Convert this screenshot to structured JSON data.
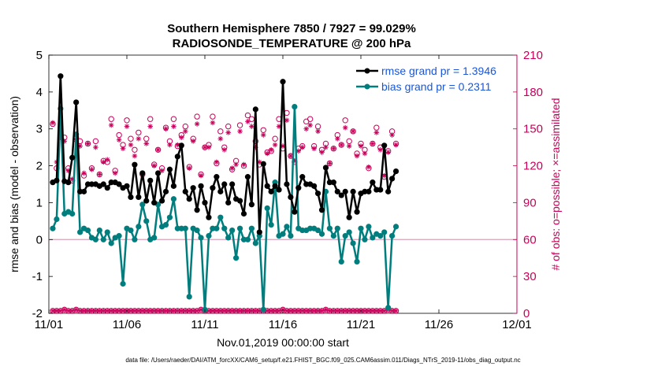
{
  "colors": {
    "rmse": "#000000",
    "bias": "#007d7d",
    "obs": "#c8005a",
    "legend_text": "#1a56d6",
    "zero_line": "#d9a0b8"
  },
  "chart_data": {
    "type": "line",
    "title_line1": "Southern Hemisphere 7850 / 7927 = 99.029%",
    "title_line2": "RADIOSONDE_TEMPERATURE @ 200 hPa",
    "xlabel": "Nov.01,2019 00:00:00 start",
    "ylabel_left": "rmse and bias (model - observation)",
    "ylabel_right": "# of obs: o=possible; ×=assimilated",
    "footer": "data file: /Users/raeder/DAI/ATM_forcXX/CAM6_setup/f.e21.FHIST_BGC.f09_025.CAM6assim.011/Diags_NTrS_2019-11/obs_diag_output.nc",
    "xlim": [
      0,
      30
    ],
    "ylim_left": [
      -2,
      5
    ],
    "ylim_right": [
      0,
      210
    ],
    "xticks": [
      0,
      5,
      10,
      15,
      20,
      25,
      30
    ],
    "xticklabels": [
      "11/01",
      "11/06",
      "11/11",
      "11/16",
      "11/21",
      "11/26",
      "12/01"
    ],
    "yticks_left": [
      -2,
      -1,
      0,
      1,
      2,
      3,
      4,
      5
    ],
    "yticks_right": [
      0,
      30,
      60,
      90,
      120,
      150,
      180,
      210
    ],
    "legend": [
      {
        "name": "rmse grand pr = 1.3946",
        "series": "rmse"
      },
      {
        "name": "bias grand pr = 0.2311",
        "series": "bias"
      }
    ],
    "series": [
      {
        "name": "rmse",
        "x_start": 0.25,
        "x_step": 0.25,
        "values": [
          1.55,
          1.6,
          4.43,
          1.58,
          1.55,
          2.22,
          3.72,
          1.3,
          1.3,
          1.5,
          1.5,
          1.5,
          1.45,
          1.5,
          1.4,
          1.55,
          1.55,
          1.5,
          1.4,
          1.45,
          1.15,
          2.03,
          1.15,
          1.8,
          1.05,
          1.6,
          1.0,
          1.8,
          1.05,
          1.3,
          1.9,
          1.45,
          2.25,
          2.55,
          1.3,
          1.1,
          1.4,
          0.8,
          1.45,
          1.0,
          0.6,
          1.4,
          1.7,
          1.3,
          1.5,
          1.0,
          1.5,
          1.1,
          1.05,
          0.7,
          1.7,
          0.95,
          3.53,
          0.2,
          2.05,
          1.45,
          1.3,
          1.45,
          1.35,
          4.28,
          1.5,
          1.15,
          0.75,
          1.4,
          1.7,
          1.5,
          1.5,
          1.45,
          1.25,
          0.8,
          1.95,
          1.55,
          1.55,
          1.3,
          1.2,
          1.3,
          0.6,
          1.3,
          0.75,
          1.25,
          1.3,
          1.3,
          1.55,
          1.35,
          1.35,
          2.55,
          1.3,
          1.65,
          1.85
        ]
      },
      {
        "name": "bias",
        "x_start": 0.25,
        "x_step": 0.25,
        "values": [
          0.3,
          0.55,
          3.55,
          0.7,
          0.75,
          0.7,
          2.85,
          0.2,
          0.3,
          0.25,
          0.05,
          0.0,
          0.25,
          0.0,
          0.2,
          -0.1,
          0.05,
          0.1,
          -1.2,
          0.3,
          0.25,
          0.0,
          0.35,
          0.95,
          0.5,
          0.0,
          0.05,
          0.95,
          0.35,
          0.4,
          0.6,
          1.1,
          0.3,
          0.3,
          0.3,
          -1.55,
          0.3,
          0.25,
          0.05,
          -1.9,
          0.1,
          0.3,
          0.3,
          0.6,
          0.3,
          0.05,
          0.25,
          -0.5,
          0.3,
          0.0,
          0.0,
          0.3,
          -0.1,
          0.1,
          -1.9,
          0.85,
          0.4,
          1.55,
          0.1,
          0.15,
          0.35,
          0.1,
          3.6,
          0.3,
          0.25,
          0.25,
          0.3,
          0.3,
          0.25,
          0.15,
          1.3,
          0.3,
          0.1,
          0.3,
          -0.6,
          0.1,
          0.2,
          -0.1,
          -0.6,
          0.3,
          0.0,
          0.35,
          0.05,
          0.15,
          0.1,
          0.2,
          -1.85,
          0.1,
          0.35
        ]
      },
      {
        "name": "obs possible",
        "x_start": 0.25,
        "x_step": 0.25,
        "values": [
          154,
          118,
          151,
          143,
          118,
          108,
          143,
          140,
          112,
          138,
          118,
          140,
          113,
          124,
          123,
          158,
          116,
          145,
          137,
          157,
          142,
          133,
          147,
          113,
          142,
          158,
          121,
          133,
          118,
          151,
          140,
          158,
          136,
          145,
          152,
          119,
          142,
          160,
          113,
          135,
          137,
          160,
          122,
          148,
          135,
          152,
          117,
          124,
          153,
          120,
          161,
          158,
          140,
          121,
          149,
          131,
          132,
          142,
          158,
          134,
          163,
          128,
          123,
          134,
          136,
          156,
          158,
          136,
          152,
          133,
          138,
          122,
          134,
          145,
          137,
          157,
          140,
          148,
          130,
          138,
          133,
          118,
          138,
          151,
          135,
          111,
          132,
          148,
          138
        ]
      },
      {
        "name": "obs assimilated",
        "x_start": 0.25,
        "x_step": 0.25,
        "values": [
          155,
          123,
          143,
          140,
          116,
          109,
          141,
          136,
          114,
          138,
          117,
          135,
          113,
          123,
          125,
          153,
          114,
          141,
          134,
          152,
          137,
          128,
          142,
          114,
          138,
          152,
          120,
          133,
          116,
          150,
          137,
          152,
          137,
          143,
          148,
          118,
          140,
          154,
          112,
          135,
          135,
          155,
          123,
          142,
          133,
          147,
          118,
          121,
          148,
          121,
          156,
          152,
          135,
          123,
          145,
          130,
          133,
          137,
          152,
          136,
          157,
          128,
          124,
          132,
          135,
          150,
          153,
          134,
          148,
          131,
          135,
          122,
          134,
          142,
          137,
          151,
          136,
          148,
          128,
          136,
          130,
          119,
          138,
          147,
          133,
          112,
          131,
          145,
          137
        ]
      },
      {
        "name": "obs possible (low)",
        "x_start": 0.25,
        "x_step": 0.25,
        "values": [
          2,
          2,
          2,
          3,
          2,
          2,
          3,
          2,
          2,
          2,
          2,
          2,
          2,
          2,
          2,
          2,
          2,
          2,
          2,
          2,
          2,
          2,
          2,
          2,
          2,
          2,
          2,
          2,
          2,
          2,
          2,
          2,
          2,
          2,
          2,
          2,
          2,
          2,
          3,
          2,
          2,
          2,
          2,
          2,
          2,
          2,
          2,
          2,
          2,
          2,
          2,
          2,
          2,
          2,
          2,
          2,
          2,
          2,
          2,
          3,
          2,
          2,
          2,
          2,
          2,
          2,
          2,
          2,
          2,
          2,
          3,
          2,
          2,
          2,
          2,
          2,
          2,
          2,
          2,
          2,
          2,
          2,
          2,
          2,
          2,
          2,
          3,
          2,
          2
        ]
      }
    ]
  }
}
